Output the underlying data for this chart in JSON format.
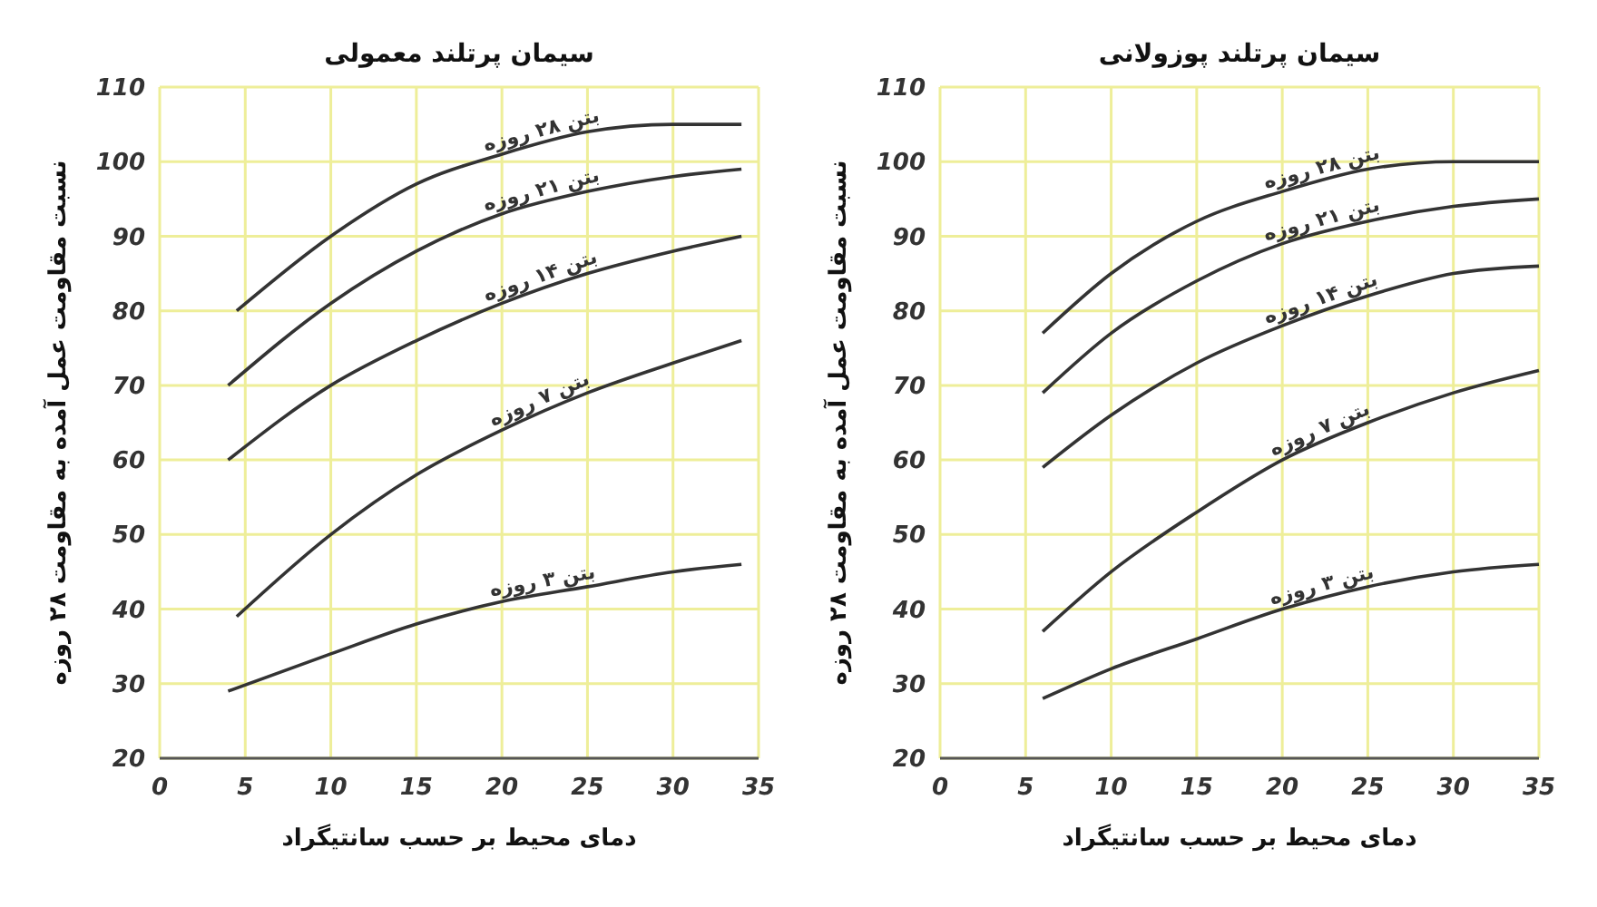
{
  "chart_data": [
    {
      "type": "line",
      "title": "سیمان پرتلند معمولی",
      "xlabel": "دمای محیط بر حسب سانتیگراد",
      "ylabel": "نسبت مقاومت عمل آمده به مقاومت ۲۸ روزه",
      "xlim": [
        0,
        35
      ],
      "xticks": [
        0,
        5,
        10,
        15,
        20,
        25,
        30,
        35
      ],
      "ylim": [
        20,
        110
      ],
      "yticks": [
        20,
        30,
        40,
        50,
        60,
        70,
        80,
        90,
        100,
        110
      ],
      "grid": true,
      "marker": "none",
      "line_style": "solid",
      "series": [
        {
          "name": "بتن ۲۸ روزه",
          "color": "#333333",
          "x": [
            4.5,
            10,
            15,
            20,
            25,
            30,
            34
          ],
          "values": [
            80,
            90,
            97,
            101,
            104,
            105,
            105
          ]
        },
        {
          "name": "بتن ۲۱ روزه",
          "color": "#333333",
          "x": [
            4,
            10,
            15,
            20,
            25,
            30,
            34
          ],
          "values": [
            70,
            81,
            88,
            93,
            96,
            98,
            99
          ]
        },
        {
          "name": "بتن ۱۴ روزه",
          "color": "#333333",
          "x": [
            4,
            10,
            15,
            20,
            25,
            30,
            34
          ],
          "values": [
            60,
            70,
            76,
            81,
            85,
            88,
            90
          ]
        },
        {
          "name": "بتن ۷ روزه",
          "color": "#333333",
          "x": [
            4.5,
            10,
            15,
            20,
            25,
            30,
            34
          ],
          "values": [
            39,
            50,
            58,
            64,
            69,
            73,
            76
          ]
        },
        {
          "name": "بتن ۳ روزه",
          "color": "#333333",
          "x": [
            4,
            10,
            15,
            20,
            25,
            30,
            34
          ],
          "values": [
            29,
            34,
            38,
            41,
            43,
            45,
            46
          ]
        }
      ]
    },
    {
      "type": "line",
      "title": "سیمان پرتلند پوزولانی",
      "xlabel": "دمای محیط بر حسب سانتیگراد",
      "ylabel": "نسبت مقاومت عمل آمده به مقاومت ۲۸ روزه",
      "xlim": [
        0,
        35
      ],
      "xticks": [
        0,
        5,
        10,
        15,
        20,
        25,
        30,
        35
      ],
      "ylim": [
        20,
        110
      ],
      "yticks": [
        20,
        30,
        40,
        50,
        60,
        70,
        80,
        90,
        100,
        110
      ],
      "grid": true,
      "marker": "none",
      "line_style": "solid",
      "series": [
        {
          "name": "بتن ۲۸ روزه",
          "color": "#333333",
          "x": [
            6,
            10,
            15,
            20,
            25,
            30,
            35
          ],
          "values": [
            77,
            85,
            92,
            96,
            99,
            100,
            100
          ]
        },
        {
          "name": "بتن ۲۱ روزه",
          "color": "#333333",
          "x": [
            6,
            10,
            15,
            20,
            25,
            30,
            35
          ],
          "values": [
            69,
            77,
            84,
            89,
            92,
            94,
            95
          ]
        },
        {
          "name": "بتن ۱۴ روزه",
          "color": "#333333",
          "x": [
            6,
            10,
            15,
            20,
            25,
            30,
            35
          ],
          "values": [
            59,
            66,
            73,
            78,
            82,
            85,
            86
          ]
        },
        {
          "name": "بتن ۷ روزه",
          "color": "#333333",
          "x": [
            6,
            10,
            15,
            20,
            25,
            30,
            35
          ],
          "values": [
            37,
            45,
            53,
            60,
            65,
            69,
            72
          ]
        },
        {
          "name": "بتن ۳ روزه",
          "color": "#333333",
          "x": [
            6,
            10,
            15,
            20,
            25,
            30,
            35
          ],
          "values": [
            28,
            32,
            36,
            40,
            43,
            45,
            46
          ]
        }
      ]
    }
  ]
}
